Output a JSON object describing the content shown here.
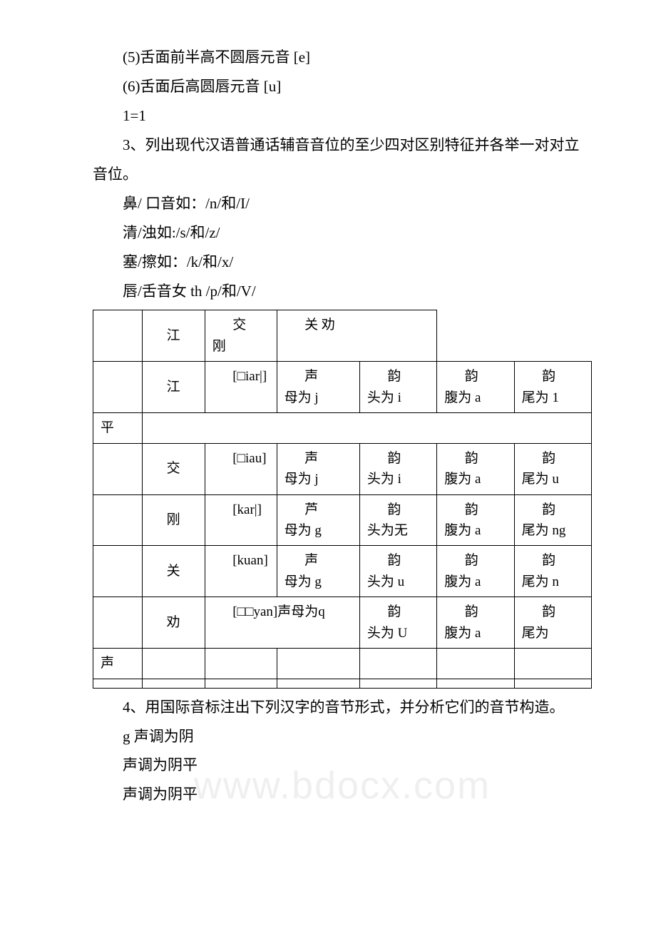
{
  "paragraphs": {
    "p1": "(5)舌面前半高不圆唇元音 [e]",
    "p2": "(6)舌面后高圆唇元音 [u]",
    "p3": "1=1",
    "p4": "3、列出现代汉语普通话辅音音位的至少四对区别特征并各举一对对立音位。",
    "p5": "鼻/ 口音如：/n/和/I/",
    "p6": "清/浊如:/s/和/z/",
    "p7": "塞/擦如：/k/和/x/",
    "p8": "唇/舌音女 th /p/和/V/",
    "p9": "4、用国际音标注出下列汉字的音节形式，并分析它们的音节构造。",
    "p10": "g 声调为阴",
    "p11": "声调为阴平",
    "p12": "声调为阴平"
  },
  "watermark": "www.bdocx.com",
  "table": {
    "r0": {
      "c0": "",
      "c1": "江",
      "c2a": "交",
      "c2b": "刚",
      "c34": "关 劝"
    },
    "r1": {
      "c0": "",
      "c1": "江",
      "c2": "[□iar|]",
      "c3a": "声",
      "c3b": "母为 j",
      "c4a": "韵",
      "c4b": "头为 i",
      "c5a": "韵",
      "c5b": "腹为 a",
      "c6a": "韵",
      "c6b": "尾为 1"
    },
    "r2": {
      "c0": "平"
    },
    "r3": {
      "c0": "",
      "c1": "交",
      "c2": "[□iau]",
      "c3a": "声",
      "c3b": "母为 j",
      "c4a": "韵",
      "c4b": "头为 i",
      "c5a": "韵",
      "c5b": "腹为 a",
      "c6a": "韵",
      "c6b": "尾为 u"
    },
    "r4": {
      "c0": "",
      "c1": "刚",
      "c2": "[kar|]",
      "c3a": "芦",
      "c3b": "母为 g",
      "c4a": "韵",
      "c4b": "头为无",
      "c5a": "韵",
      "c5b": "腹为 a",
      "c6a": "韵",
      "c6b": "尾为 ng"
    },
    "r5": {
      "c0": "",
      "c1": "关",
      "c2": "[kuan]",
      "c3a": "声",
      "c3b": "母为 g",
      "c4a": "韵",
      "c4b": "头为 u",
      "c5a": "韵",
      "c5b": "腹为 a",
      "c6a": "韵",
      "c6b": "尾为 n"
    },
    "r6": {
      "c0": "",
      "c1": "劝",
      "c23": "[□□yan]声母为q",
      "c4a": "韵",
      "c4b": "头为 U",
      "c5a": "韵",
      "c5b": "腹为 a",
      "c6a": "韵",
      "c6b": "尾为"
    },
    "r7": {
      "c0": "声"
    },
    "r8": {
      "c0": ""
    }
  }
}
